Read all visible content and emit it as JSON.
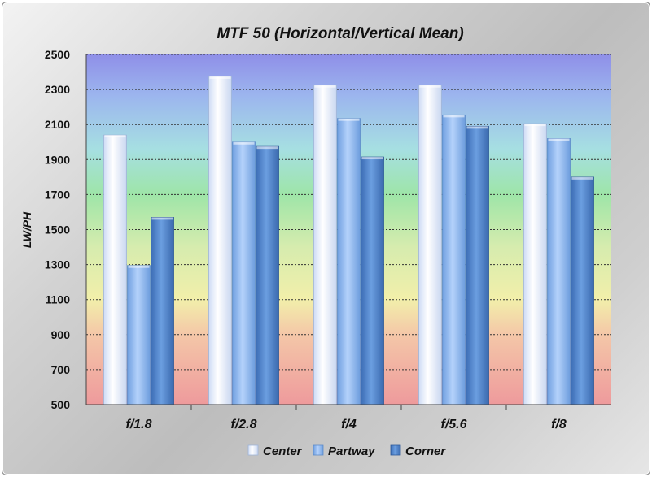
{
  "chart_data": {
    "type": "bar",
    "title": "MTF 50 (Horizontal/Vertical Mean)",
    "xlabel": "",
    "ylabel": "LW/PH",
    "ylim": [
      500,
      2500
    ],
    "yticks": [
      500,
      700,
      900,
      1100,
      1300,
      1500,
      1700,
      1900,
      2100,
      2300,
      2500
    ],
    "categories": [
      "f/1.8",
      "f/2.8",
      "f/4",
      "f/5.6",
      "f/8"
    ],
    "series": [
      {
        "name": "Center",
        "values": [
          2040,
          2375,
          2325,
          2325,
          2105
        ]
      },
      {
        "name": "Partway",
        "values": [
          1295,
          2000,
          2135,
          2155,
          2020
        ]
      },
      {
        "name": "Corner",
        "values": [
          1570,
          1975,
          1915,
          2090,
          1800
        ]
      }
    ],
    "grid": true,
    "legend_position": "bottom",
    "colors": {
      "Center": "#eef3ff",
      "Partway": "#8db8f2",
      "Corner": "#4f86cc"
    },
    "background_bands": [
      "#8f93e6",
      "#a9d9ea",
      "#9fe3a4",
      "#eeeea4",
      "#f3b3a5",
      "#ee9a9a"
    ]
  }
}
